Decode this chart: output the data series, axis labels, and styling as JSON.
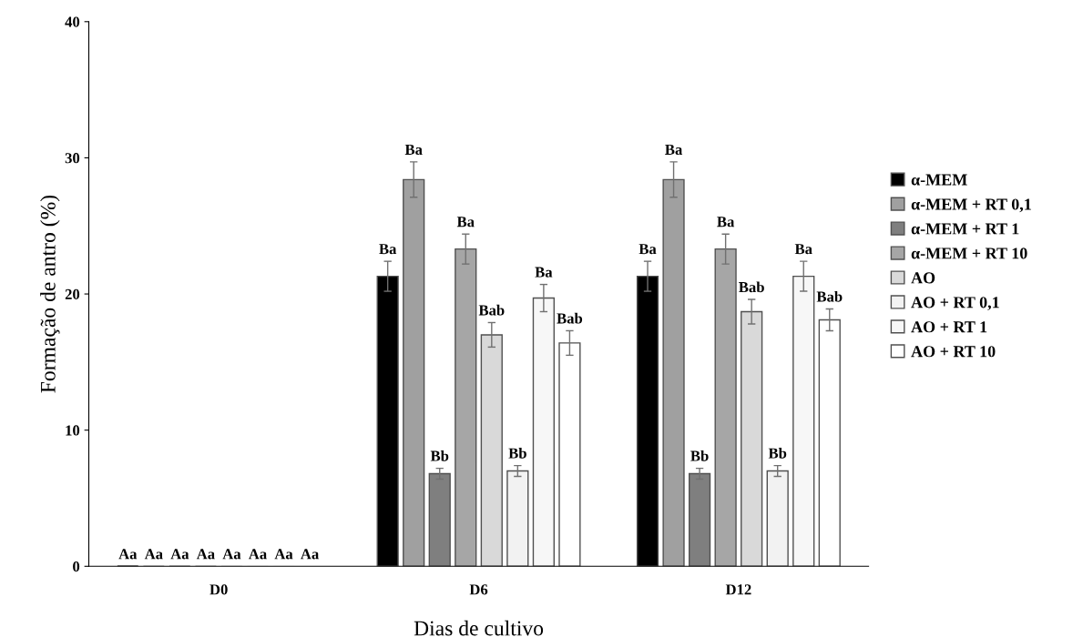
{
  "chart_data": {
    "type": "bar",
    "xlabel": "Dias de cultivo",
    "ylabel": "Formação de antro (%)",
    "categories": [
      "D0",
      "D6",
      "D12"
    ],
    "ylim": [
      0,
      40
    ],
    "yticks": [
      0,
      10,
      20,
      30,
      40
    ],
    "grid": false,
    "legend": "right",
    "series": [
      {
        "name": "α-MEM",
        "color": "#000000",
        "values": [
          0,
          21.3,
          21.3
        ],
        "errors": [
          null,
          1.1,
          1.1
        ],
        "value_labels": [
          "Aa",
          "Ba",
          "Ba"
        ]
      },
      {
        "name": "α-MEM + RT 0,1",
        "color": "#a0a0a0",
        "values": [
          0,
          28.4,
          28.4
        ],
        "errors": [
          null,
          1.3,
          1.3
        ],
        "value_labels": [
          "Aa",
          "Ba",
          "Ba"
        ]
      },
      {
        "name": "α-MEM + RT 1",
        "color": "#7f7f7f",
        "values": [
          0,
          6.8,
          6.8
        ],
        "errors": [
          null,
          0.4,
          0.4
        ],
        "value_labels": [
          "Aa",
          "Bb",
          "Bb"
        ]
      },
      {
        "name": "α-MEM + RT 10",
        "color": "#a6a6a6",
        "values": [
          0,
          23.3,
          23.3
        ],
        "errors": [
          null,
          1.1,
          1.1
        ],
        "value_labels": [
          "Aa",
          "Ba",
          "Ba"
        ]
      },
      {
        "name": "AO",
        "color": "#d9d9d9",
        "values": [
          0,
          17.0,
          18.7
        ],
        "errors": [
          null,
          0.9,
          0.9
        ],
        "value_labels": [
          "Aa",
          "Bab",
          "Bab"
        ]
      },
      {
        "name": "AO + RT 0,1",
        "color": "#f2f2f2",
        "values": [
          0,
          7.0,
          7.0
        ],
        "errors": [
          null,
          0.4,
          0.4
        ],
        "value_labels": [
          "Aa",
          "Bb",
          "Bb"
        ]
      },
      {
        "name": "AO + RT 1",
        "color": "#f7f7f7",
        "values": [
          0,
          19.7,
          21.3
        ],
        "errors": [
          null,
          1.0,
          1.1
        ],
        "value_labels": [
          "Aa",
          "Ba",
          "Ba"
        ]
      },
      {
        "name": "AO + RT 10",
        "color": "#ffffff",
        "values": [
          0,
          16.4,
          18.1
        ],
        "errors": [
          null,
          0.9,
          0.8
        ],
        "value_labels": [
          "Aa",
          "Bab",
          "Bab"
        ]
      }
    ]
  }
}
